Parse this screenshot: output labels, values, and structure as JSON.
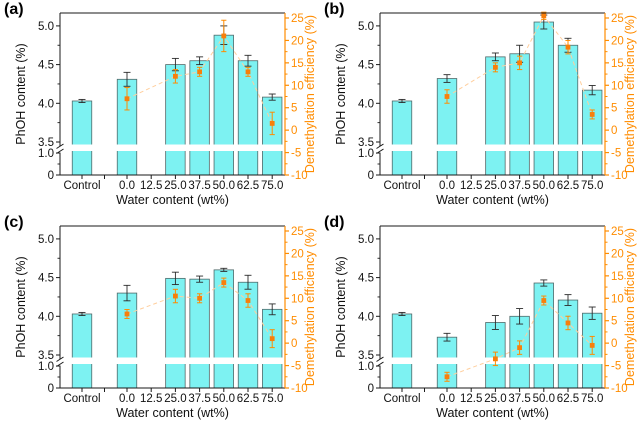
{
  "figure": {
    "x_axis_title": "Water content (wt%)",
    "left_axis_title": "PhOH content (%)",
    "right_axis_title": "Demethylation efficiency (%)",
    "categories": [
      "Control",
      "0.0",
      "12.5",
      "25.0",
      "37.5",
      "50.0",
      "62.5",
      "75.0"
    ],
    "left_ticks_upper": [
      "5.0",
      "4.5",
      "4.0",
      "3.5"
    ],
    "left_ticks_lower": [
      "1.0",
      "0"
    ],
    "left_minor_ticks_upper": [
      3.75,
      4.25,
      4.75
    ],
    "left_minor_ticks_lower": [
      0.5
    ],
    "right_ticks": [
      "25",
      "20",
      "15",
      "10",
      "5",
      "0",
      "-5",
      "-10"
    ],
    "right_minor_ticks": [
      22.5,
      17.5,
      12.5,
      7.5,
      2.5,
      -2.5,
      -7.5
    ],
    "axis_break": {
      "between_values": [
        1.0,
        3.5
      ],
      "style": "white band through bars with double slash on left axis"
    },
    "colors": {
      "bar_fill": "#7df2f2",
      "bar_stroke": "#506969",
      "error": "#2b2b2b",
      "orange": "#ff8c00",
      "orange_marker": "#f87f0a",
      "orange_line": "#ffcf9e",
      "axis": "#1a1a1a",
      "text": "#111111",
      "background": "#ffffff"
    }
  },
  "chart_data": [
    {
      "panel": "(a)",
      "type": "bar",
      "categories": [
        "Control",
        "0.0",
        "12.5",
        "25.0",
        "37.5",
        "50.0",
        "62.5",
        "75.0"
      ],
      "xlabel": "Water content (wt%)",
      "ylabel_left": "PhOH content (%)",
      "ylabel_right": "Demethylation efficiency (%)",
      "left_axis_range_upper": [
        3.5,
        5.15
      ],
      "left_axis_range_lower": [
        0,
        1.1
      ],
      "right_axis_range": [
        -10,
        25
      ],
      "legend_position": "none",
      "grid": false,
      "series": [
        {
          "name": "PhOH content (%)",
          "axis": "left",
          "kind": "bar",
          "values": [
            4.03,
            4.31,
            null,
            4.5,
            4.55,
            4.88,
            4.55,
            4.08
          ],
          "errors": [
            0.02,
            0.09,
            null,
            0.08,
            0.05,
            0.12,
            0.07,
            0.04
          ]
        },
        {
          "name": "Demethylation efficiency (%)",
          "axis": "right",
          "kind": "scatter-line",
          "values": [
            null,
            7,
            null,
            12,
            13,
            21,
            13,
            1.5
          ],
          "errors": [
            null,
            2.5,
            null,
            1.5,
            1,
            3.5,
            1,
            2.5
          ]
        }
      ]
    },
    {
      "panel": "(b)",
      "type": "bar",
      "categories": [
        "Control",
        "0.0",
        "12.5",
        "25.0",
        "37.5",
        "50.0",
        "62.5",
        "75.0"
      ],
      "xlabel": "Water content (wt%)",
      "ylabel_left": "PhOH content (%)",
      "ylabel_right": "Demethylation efficiency (%)",
      "left_axis_range_upper": [
        3.5,
        5.15
      ],
      "left_axis_range_lower": [
        0,
        1.1
      ],
      "right_axis_range": [
        -10,
        25
      ],
      "legend_position": "none",
      "grid": false,
      "series": [
        {
          "name": "PhOH content (%)",
          "axis": "left",
          "kind": "bar",
          "values": [
            4.03,
            4.32,
            null,
            4.6,
            4.64,
            5.05,
            4.75,
            4.17
          ],
          "errors": [
            0.02,
            0.05,
            null,
            0.05,
            0.11,
            0.09,
            0.09,
            0.06
          ]
        },
        {
          "name": "Demethylation efficiency (%)",
          "axis": "right",
          "kind": "scatter-line",
          "values": [
            null,
            7.5,
            null,
            14,
            15,
            25.5,
            18.5,
            3.5
          ],
          "errors": [
            null,
            1.5,
            null,
            1,
            1.5,
            0.8,
            1.5,
            1
          ]
        }
      ]
    },
    {
      "panel": "(c)",
      "type": "bar",
      "categories": [
        "Control",
        "0.0",
        "12.5",
        "25.0",
        "37.5",
        "50.0",
        "62.5",
        "75.0"
      ],
      "xlabel": "Water content (wt%)",
      "ylabel_left": "PhOH content (%)",
      "ylabel_right": "Demethylation efficiency (%)",
      "left_axis_range_upper": [
        3.5,
        5.15
      ],
      "left_axis_range_lower": [
        0,
        1.1
      ],
      "right_axis_range": [
        -10,
        25
      ],
      "legend_position": "none",
      "grid": false,
      "series": [
        {
          "name": "PhOH content (%)",
          "axis": "left",
          "kind": "bar",
          "values": [
            4.03,
            4.3,
            null,
            4.49,
            4.48,
            4.6,
            4.44,
            4.09
          ],
          "errors": [
            0.02,
            0.1,
            null,
            0.08,
            0.04,
            0.02,
            0.09,
            0.07
          ]
        },
        {
          "name": "Demethylation efficiency (%)",
          "axis": "right",
          "kind": "scatter-line",
          "values": [
            null,
            6.5,
            null,
            10.5,
            10,
            13.5,
            9.5,
            1
          ],
          "errors": [
            null,
            1,
            null,
            1.5,
            1,
            1,
            1.5,
            2
          ]
        }
      ]
    },
    {
      "panel": "(d)",
      "type": "bar",
      "categories": [
        "Control",
        "0.0",
        "12.5",
        "25.0",
        "37.5",
        "50.0",
        "62.5",
        "75.0"
      ],
      "xlabel": "Water content (wt%)",
      "ylabel_left": "PhOH content (%)",
      "ylabel_right": "Demethylation efficiency (%)",
      "left_axis_range_upper": [
        3.5,
        5.15
      ],
      "left_axis_range_lower": [
        0,
        1.1
      ],
      "right_axis_range": [
        -10,
        25
      ],
      "legend_position": "none",
      "grid": false,
      "series": [
        {
          "name": "PhOH content (%)",
          "axis": "left",
          "kind": "bar",
          "values": [
            4.03,
            3.73,
            null,
            3.92,
            4.0,
            4.43,
            4.21,
            4.04
          ],
          "errors": [
            0.02,
            0.05,
            null,
            0.09,
            0.1,
            0.04,
            0.07,
            0.08
          ]
        },
        {
          "name": "Demethylation efficiency (%)",
          "axis": "right",
          "kind": "scatter-line",
          "values": [
            null,
            -7.5,
            null,
            -3.5,
            -1,
            9.5,
            4.5,
            -0.5
          ],
          "errors": [
            null,
            1,
            null,
            1.5,
            1.5,
            1,
            1.5,
            2
          ]
        }
      ]
    }
  ]
}
